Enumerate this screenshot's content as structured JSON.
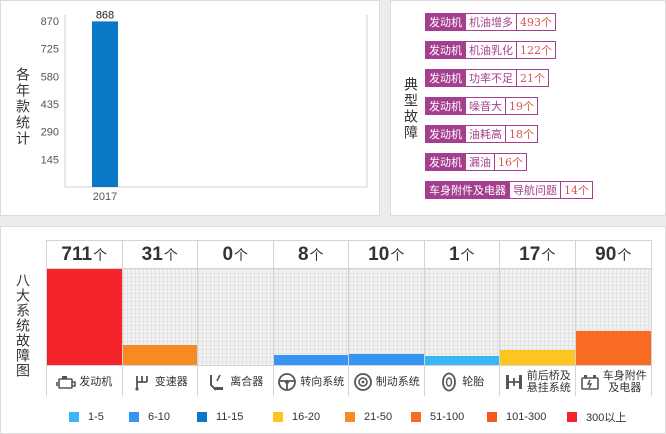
{
  "year_panel": {
    "ylabel": "各年款统计"
  },
  "fault_panel": {
    "ylabel": "典型故障",
    "faults": [
      {
        "system": "发动机",
        "name": "机油增多",
        "count": "493个"
      },
      {
        "system": "发动机",
        "name": "机油乳化",
        "count": "122个"
      },
      {
        "system": "发动机",
        "name": "功率不足",
        "count": "21个"
      },
      {
        "system": "发动机",
        "name": "噪音大",
        "count": "19个"
      },
      {
        "system": "发动机",
        "name": "油耗高",
        "count": "18个"
      },
      {
        "system": "发动机",
        "name": "漏油",
        "count": "16个"
      },
      {
        "system": "车身附件及电器",
        "name": "导航问题",
        "count": "14个"
      }
    ]
  },
  "systems_panel": {
    "ylabel": "八大系统故障图",
    "unit": "个",
    "systems": [
      {
        "name": "发动机",
        "count": 711,
        "color": "#f4242a",
        "icon": "engine-icon"
      },
      {
        "name": "变速器",
        "count": 31,
        "color": "#f68b24",
        "icon": "gear-shift-icon"
      },
      {
        "name": "离合器",
        "count": 0,
        "color": "#ffffff",
        "icon": "clutch-pedal-icon"
      },
      {
        "name": "转向系统",
        "count": 8,
        "color": "#3694f2",
        "icon": "steering-wheel-icon"
      },
      {
        "name": "制动系统",
        "count": 10,
        "color": "#3694f2",
        "icon": "brake-disc-icon"
      },
      {
        "name": "轮胎",
        "count": 1,
        "color": "#3ab5f6",
        "icon": "tire-icon"
      },
      {
        "name": "前后桥及悬挂系统",
        "count": 17,
        "color": "#fcc51f",
        "icon": "axle-icon"
      },
      {
        "name": "车身附件及电器",
        "count": 90,
        "color": "#f96b22",
        "icon": "car-battery-icon"
      }
    ],
    "legend": [
      {
        "label": "1-5",
        "color": "#3ab5f6"
      },
      {
        "label": "6-10",
        "color": "#3694f2"
      },
      {
        "label": "11-15",
        "color": "#0a78c6"
      },
      {
        "label": "16-20",
        "color": "#fcc51f"
      },
      {
        "label": "21-50",
        "color": "#f68b24"
      },
      {
        "label": "51-100",
        "color": "#f96b22"
      },
      {
        "label": "101-300",
        "color": "#f4571f"
      },
      {
        "label": "300以上",
        "color": "#f4242a"
      }
    ]
  },
  "chart_data": [
    {
      "type": "bar",
      "categories": [
        "2017"
      ],
      "values": [
        868
      ],
      "title": "",
      "xlabel": "",
      "ylabel": "各年款统计",
      "yticks": [
        145,
        290,
        435,
        580,
        725,
        870
      ],
      "ylim": [
        0,
        870
      ],
      "bar_color": "#0a78c6",
      "grid": false
    },
    {
      "type": "bar",
      "categories": [
        "发动机",
        "变速器",
        "离合器",
        "转向系统",
        "制动系统",
        "轮胎",
        "前后桥及悬挂系统",
        "车身附件及电器"
      ],
      "values": [
        711,
        31,
        0,
        8,
        10,
        1,
        17,
        90
      ],
      "title": "",
      "ylabel": "八大系统故障图",
      "legend_position": "bottom"
    }
  ]
}
